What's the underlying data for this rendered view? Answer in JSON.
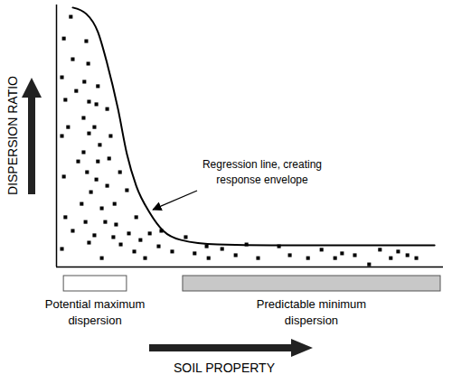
{
  "chart_data": {
    "type": "scatter",
    "x_label": "SOIL PROPERTY",
    "y_label": "DISPERSION RATIO",
    "xlim": [
      0,
      100
    ],
    "ylim": [
      0,
      100
    ],
    "xticks": [],
    "yticks": [],
    "tick_labels": false,
    "grid": false,
    "marker": "square",
    "color": "#000000",
    "x": [
      1.9,
      3.7,
      1.4,
      4.2,
      2.3,
      5.1,
      1.4,
      3.0,
      1.9,
      5.6,
      2.3,
      1.4,
      4.2,
      6.5,
      7.7,
      8.2,
      7.2,
      8.4,
      7.0,
      8.4,
      7.0,
      7.9,
      8.9,
      7.5,
      8.4,
      10.7,
      10.3,
      9.8,
      11.2,
      10.7,
      10.3,
      11.7,
      9.8,
      11.7,
      13.1,
      14.0,
      13.6,
      13.1,
      12.6,
      15.0,
      14.7,
      16.4,
      15.4,
      16.6,
      18.2,
      18.7,
      20.1,
      20.6,
      21.7,
      22.9,
      24.1,
      27.1,
      26.4,
      29.9,
      33.4,
      35.7,
      39.3,
      38.8,
      42.8,
      46.3,
      49.1,
      52.1,
      57.5,
      60.3,
      65.0,
      68.5,
      72.0,
      73.8,
      77.1,
      80.8,
      83.6,
      86.4,
      88.3,
      90.7,
      93.0
    ],
    "values": [
      87.2,
      95.5,
      72.4,
      79.3,
      63.8,
      67.2,
      50.0,
      53.4,
      34.5,
      40.3,
      19.0,
      6.9,
      13.8,
      24.1,
      86.2,
      77.6,
      70.7,
      63.1,
      56.9,
      51.0,
      43.8,
      36.2,
      28.6,
      17.2,
      9.3,
      69.0,
      62.1,
      53.4,
      46.6,
      40.3,
      33.4,
      22.4,
      12.1,
      3.4,
      60.3,
      50.0,
      41.4,
      31.0,
      17.2,
      24.1,
      11.4,
      36.2,
      16.2,
      8.6,
      29.3,
      12.8,
      5.9,
      19.0,
      10.3,
      3.4,
      12.8,
      13.8,
      7.9,
      5.9,
      11.4,
      5.2,
      3.4,
      7.9,
      6.9,
      4.5,
      8.6,
      3.4,
      7.9,
      4.5,
      3.4,
      6.6,
      3.4,
      5.2,
      4.5,
      1.0,
      6.6,
      3.4,
      5.9,
      4.5,
      3.4
    ],
    "regression": {
      "type": "line",
      "color": "#000000",
      "x": [
        4.2,
        7.7,
        10.7,
        13.1,
        15.9,
        18.2,
        20.6,
        24.1,
        27.6,
        32.2,
        41.6,
        55.6,
        79.0,
        97.7
      ],
      "values": [
        99.0,
        96.6,
        89.7,
        77.6,
        60.3,
        43.1,
        31.0,
        20.7,
        13.8,
        10.3,
        8.6,
        8.3,
        8.3,
        8.3
      ]
    },
    "annotation": "Regression line, creating\nresponse envelope",
    "zones": [
      {
        "label": "Potential maximum\ndispersion",
        "range": [
          1.9,
          18.2
        ],
        "color": "#ffffff"
      },
      {
        "label": "Predictable minimum\ndispersion",
        "range": [
          32.7,
          99.3
        ],
        "color": "#c8c8c8"
      }
    ]
  }
}
